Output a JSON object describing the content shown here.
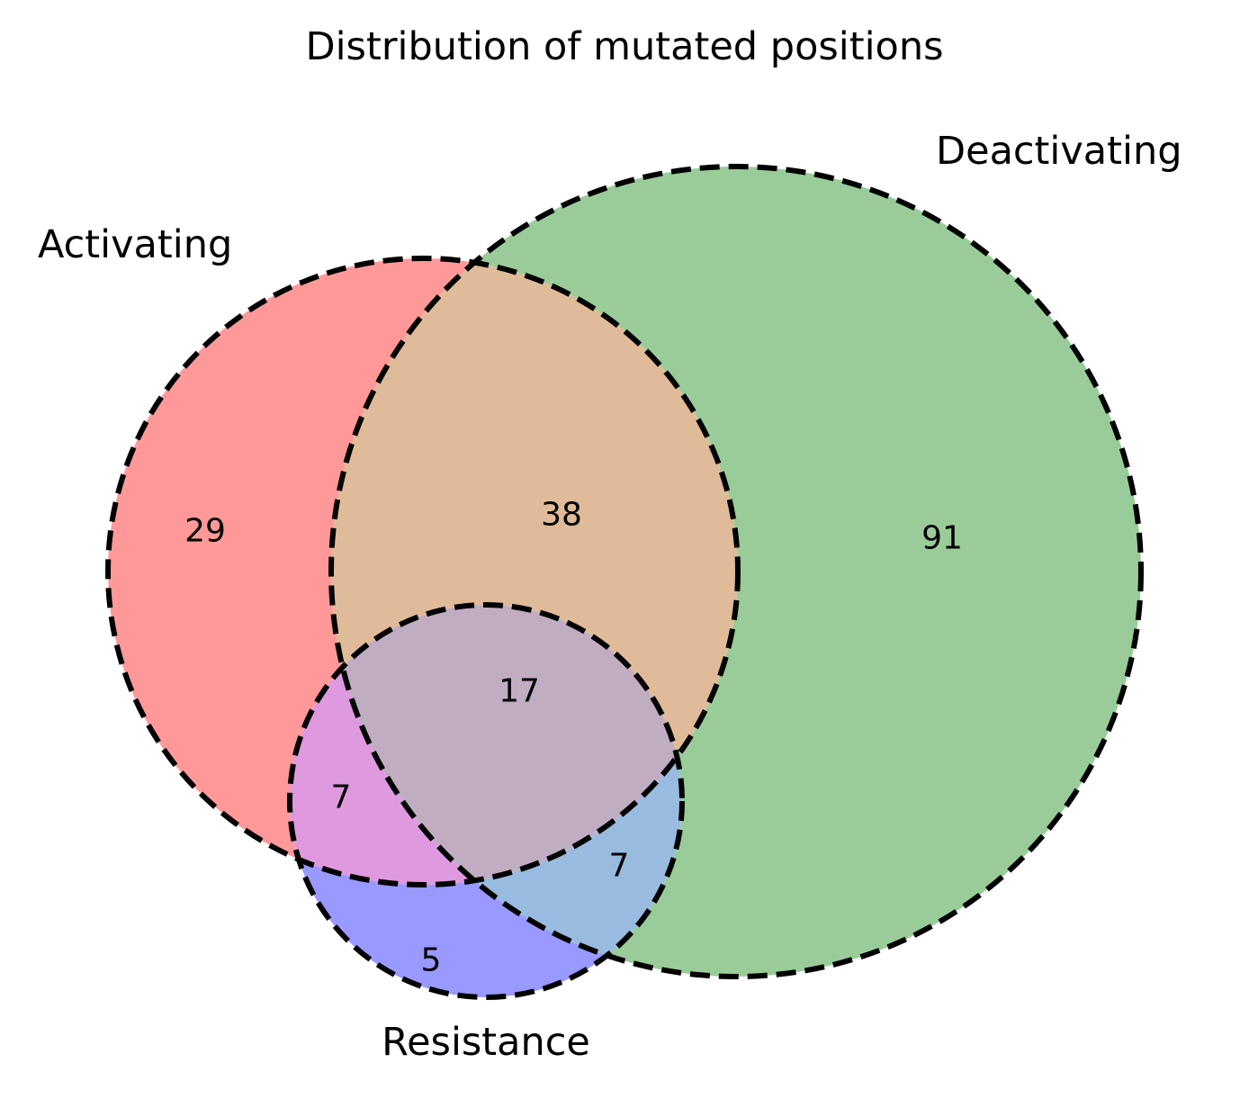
{
  "title": "Distribution of mutated positions",
  "sets": {
    "activating": {
      "label": "Activating",
      "color": "#ff9999"
    },
    "deactivating": {
      "label": "Deactivating",
      "color": "#99cc99"
    },
    "resistance": {
      "label": "Resistance",
      "color": "#9999ff"
    }
  },
  "regions": {
    "activating_only": {
      "count": "29",
      "color": "#ff9999"
    },
    "activating_deactivating": {
      "count": "38",
      "color": "#e0bb99"
    },
    "deactivating_only": {
      "count": "91",
      "color": "#99cc99"
    },
    "all_three": {
      "count": "17",
      "color": "#c0adc2"
    },
    "activating_resistance": {
      "count": "7",
      "color": "#df99df"
    },
    "deactivating_resistance": {
      "count": "7",
      "color": "#99bbdf"
    },
    "resistance_only": {
      "count": "5",
      "color": "#9999ff"
    }
  }
}
